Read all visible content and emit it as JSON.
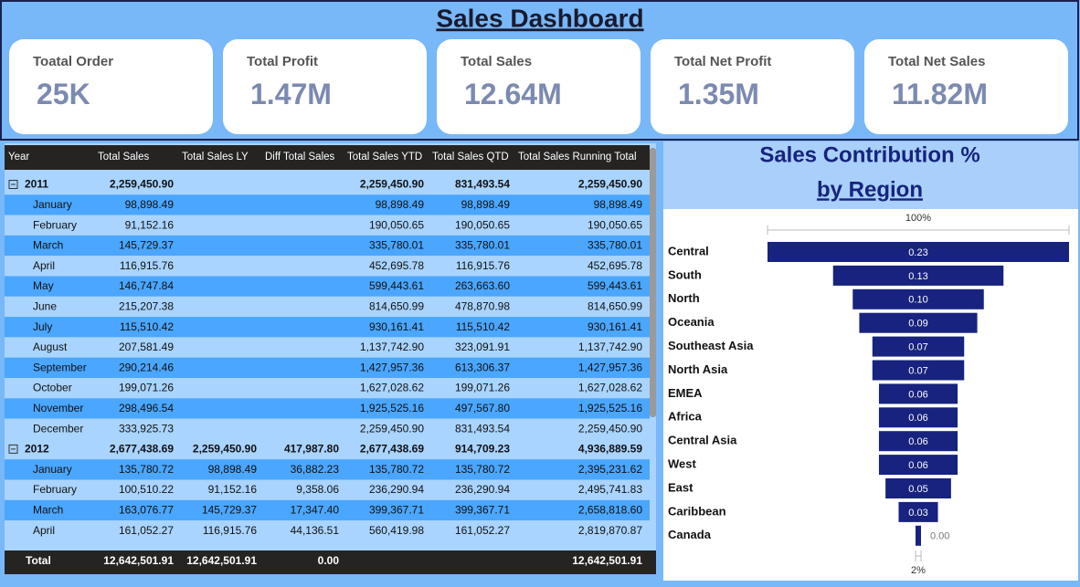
{
  "header": {
    "title": "Sales Dashboard"
  },
  "kpis": [
    {
      "label": "Toatal Order",
      "value": "25K"
    },
    {
      "label": "Total Profit",
      "value": "1.47M"
    },
    {
      "label": "Total Sales",
      "value": "12.64M"
    },
    {
      "label": "Total Net Profit",
      "value": "1.35M"
    },
    {
      "label": "Total Net Sales",
      "value": "11.82M"
    }
  ],
  "table": {
    "columns": [
      "Year",
      "Total Sales",
      "Total Sales LY",
      "Diff Total Sales",
      "Total Sales YTD",
      "Total Sales QTD",
      "Total Sales Running Total"
    ],
    "rows": [
      [
        "2011",
        "2,259,450.90",
        null,
        null,
        "2,259,450.90",
        "831,493.54",
        "2,259,450.90"
      ],
      [
        "January",
        "98,898.49",
        null,
        null,
        "98,898.49",
        "98,898.49",
        "98,898.49"
      ],
      [
        "February",
        "91,152.16",
        null,
        null,
        "190,050.65",
        "190,050.65",
        "190,050.65"
      ],
      [
        "March",
        "145,729.37",
        null,
        null,
        "335,780.01",
        "335,780.01",
        "335,780.01"
      ],
      [
        "April",
        "116,915.76",
        null,
        null,
        "452,695.78",
        "116,915.76",
        "452,695.78"
      ],
      [
        "May",
        "146,747.84",
        null,
        null,
        "599,443.61",
        "263,663.60",
        "599,443.61"
      ],
      [
        "June",
        "215,207.38",
        null,
        null,
        "814,650.99",
        "478,870.98",
        "814,650.99"
      ],
      [
        "July",
        "115,510.42",
        null,
        null,
        "930,161.41",
        "115,510.42",
        "930,161.41"
      ],
      [
        "August",
        "207,581.49",
        null,
        null,
        "1,137,742.90",
        "323,091.91",
        "1,137,742.90"
      ],
      [
        "September",
        "290,214.46",
        null,
        null,
        "1,427,957.36",
        "613,306.37",
        "1,427,957.36"
      ],
      [
        "October",
        "199,071.26",
        null,
        null,
        "1,627,028.62",
        "199,071.26",
        "1,627,028.62"
      ],
      [
        "November",
        "298,496.54",
        null,
        null,
        "1,925,525.16",
        "497,567.80",
        "1,925,525.16"
      ],
      [
        "December",
        "333,925.73",
        null,
        null,
        "2,259,450.90",
        "831,493.54",
        "2,259,450.90"
      ],
      [
        "2012",
        "2,677,438.69",
        "2,259,450.90",
        "417,987.80",
        "2,677,438.69",
        "914,709.23",
        "4,936,889.59"
      ],
      [
        "January",
        "135,780.72",
        "98,898.49",
        "36,882.23",
        "135,780.72",
        "135,780.72",
        "2,395,231.62"
      ],
      [
        "February",
        "100,510.22",
        "91,152.16",
        "9,358.06",
        "236,290.94",
        "236,290.94",
        "2,495,741.83"
      ],
      [
        "March",
        "163,076.77",
        "145,729.37",
        "17,347.40",
        "399,367.71",
        "399,367.71",
        "2,658,818.60"
      ],
      [
        "April",
        "161,052.27",
        "116,915.76",
        "44,136.51",
        "560,419.98",
        "161,052.27",
        "2,819,870.87"
      ]
    ],
    "total": [
      "Total",
      "12,642,501.91",
      "12,642,501.91",
      "0.00",
      null,
      null,
      "12,642,501.91"
    ]
  },
  "chart_data": {
    "type": "funnel",
    "title": "Sales Contribution %",
    "subtitle": "by Region",
    "top_label": "100%",
    "bottom_label": "2%",
    "color": "#17237e",
    "categories": [
      "Central",
      "South",
      "North",
      "Oceania",
      "Southeast Asia",
      "North Asia",
      "EMEA",
      "Africa",
      "Central Asia",
      "West",
      "East",
      "Caribbean",
      "Canada"
    ],
    "values": [
      0.23,
      0.13,
      0.1,
      0.09,
      0.07,
      0.07,
      0.06,
      0.06,
      0.06,
      0.06,
      0.05,
      0.03,
      0.0
    ],
    "value_labels": [
      "0.23",
      "0.13",
      "0.10",
      "0.09",
      "0.07",
      "0.07",
      "0.06",
      "0.06",
      "0.06",
      "0.06",
      "0.05",
      "0.03",
      "0.00"
    ]
  }
}
